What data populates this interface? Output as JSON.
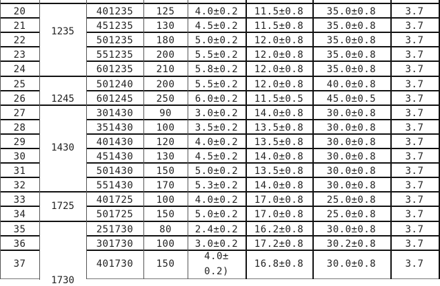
{
  "table": {
    "rows": [
      [
        "20",
        "401235",
        "125",
        "4.0±0.2",
        "11.5±0.8",
        "35.0±0.8",
        "3.7"
      ],
      [
        "21",
        "451235",
        "130",
        "4.5±0.2",
        "11.5±0.8",
        "35.0±0.8",
        "3.7"
      ],
      [
        "22",
        "501235",
        "180",
        "5.0±0.2",
        "12.0±0.8",
        "35.0±0.8",
        "3.7"
      ],
      [
        "23",
        "551235",
        "200",
        "5.5±0.2",
        "12.0±0.8",
        "35.0±0.8",
        "3.7"
      ],
      [
        "24",
        "601235",
        "210",
        "5.8±0.2",
        "12.0±0.8",
        "35.0±0.8",
        "3.7"
      ],
      [
        "25",
        "501240",
        "200",
        "5.5±0.2",
        "12.0±0.8",
        "40.0±0.8",
        "3.7"
      ],
      [
        "26",
        "601245",
        "250",
        "6.0±0.2",
        "11.5±0.5",
        "45.0±0.5",
        "3.7"
      ],
      [
        "27",
        "301430",
        "90",
        "3.0±0.2",
        "14.0±0.8",
        "30.0±0.8",
        "3.7"
      ],
      [
        "28",
        "351430",
        "100",
        "3.5±0.2",
        "13.5±0.8",
        "30.0±0.8",
        "3.7"
      ],
      [
        "29",
        "401430",
        "120",
        "4.0±0.2",
        "13.5±0.8",
        "30.0±0.8",
        "3.7"
      ],
      [
        "30",
        "451430",
        "130",
        "4.5±0.2",
        "14.0±0.8",
        "30.0±0.8",
        "3.7"
      ],
      [
        "31",
        "501430",
        "150",
        "5.0±0.2",
        "13.5±0.8",
        "30.0±0.8",
        "3.7"
      ],
      [
        "32",
        "551430",
        "170",
        "5.3±0.2",
        "14.0±0.8",
        "30.0±0.8",
        "3.7"
      ],
      [
        "33",
        "401725",
        "100",
        "4.0±0.2",
        "17.0±0.8",
        "25.0±0.8",
        "3.7"
      ],
      [
        "34",
        "501725",
        "150",
        "5.0±0.2",
        "17.0±0.8",
        "25.0±0.8",
        "3.7"
      ],
      [
        "35",
        "251730",
        "80",
        "2.4±0.2",
        "16.2±0.8",
        "30.0±0.8",
        "3.7"
      ],
      [
        "36",
        "301730",
        "100",
        "3.0±0.2",
        "17.2±0.8",
        "30.2±0.8",
        "3.7"
      ]
    ],
    "last_row": {
      "no": "37",
      "model": "401730",
      "cap": "150",
      "thick_line1": "4.0±",
      "thick_line2": "0.2)",
      "width": "16.8±0.8",
      "length": "30.0±0.8",
      "voltage": "3.7"
    },
    "groups": {
      "g1235": "1235",
      "g1245": "1245",
      "g1430": "1430",
      "g1725": "1725",
      "g1730": "1730"
    }
  }
}
